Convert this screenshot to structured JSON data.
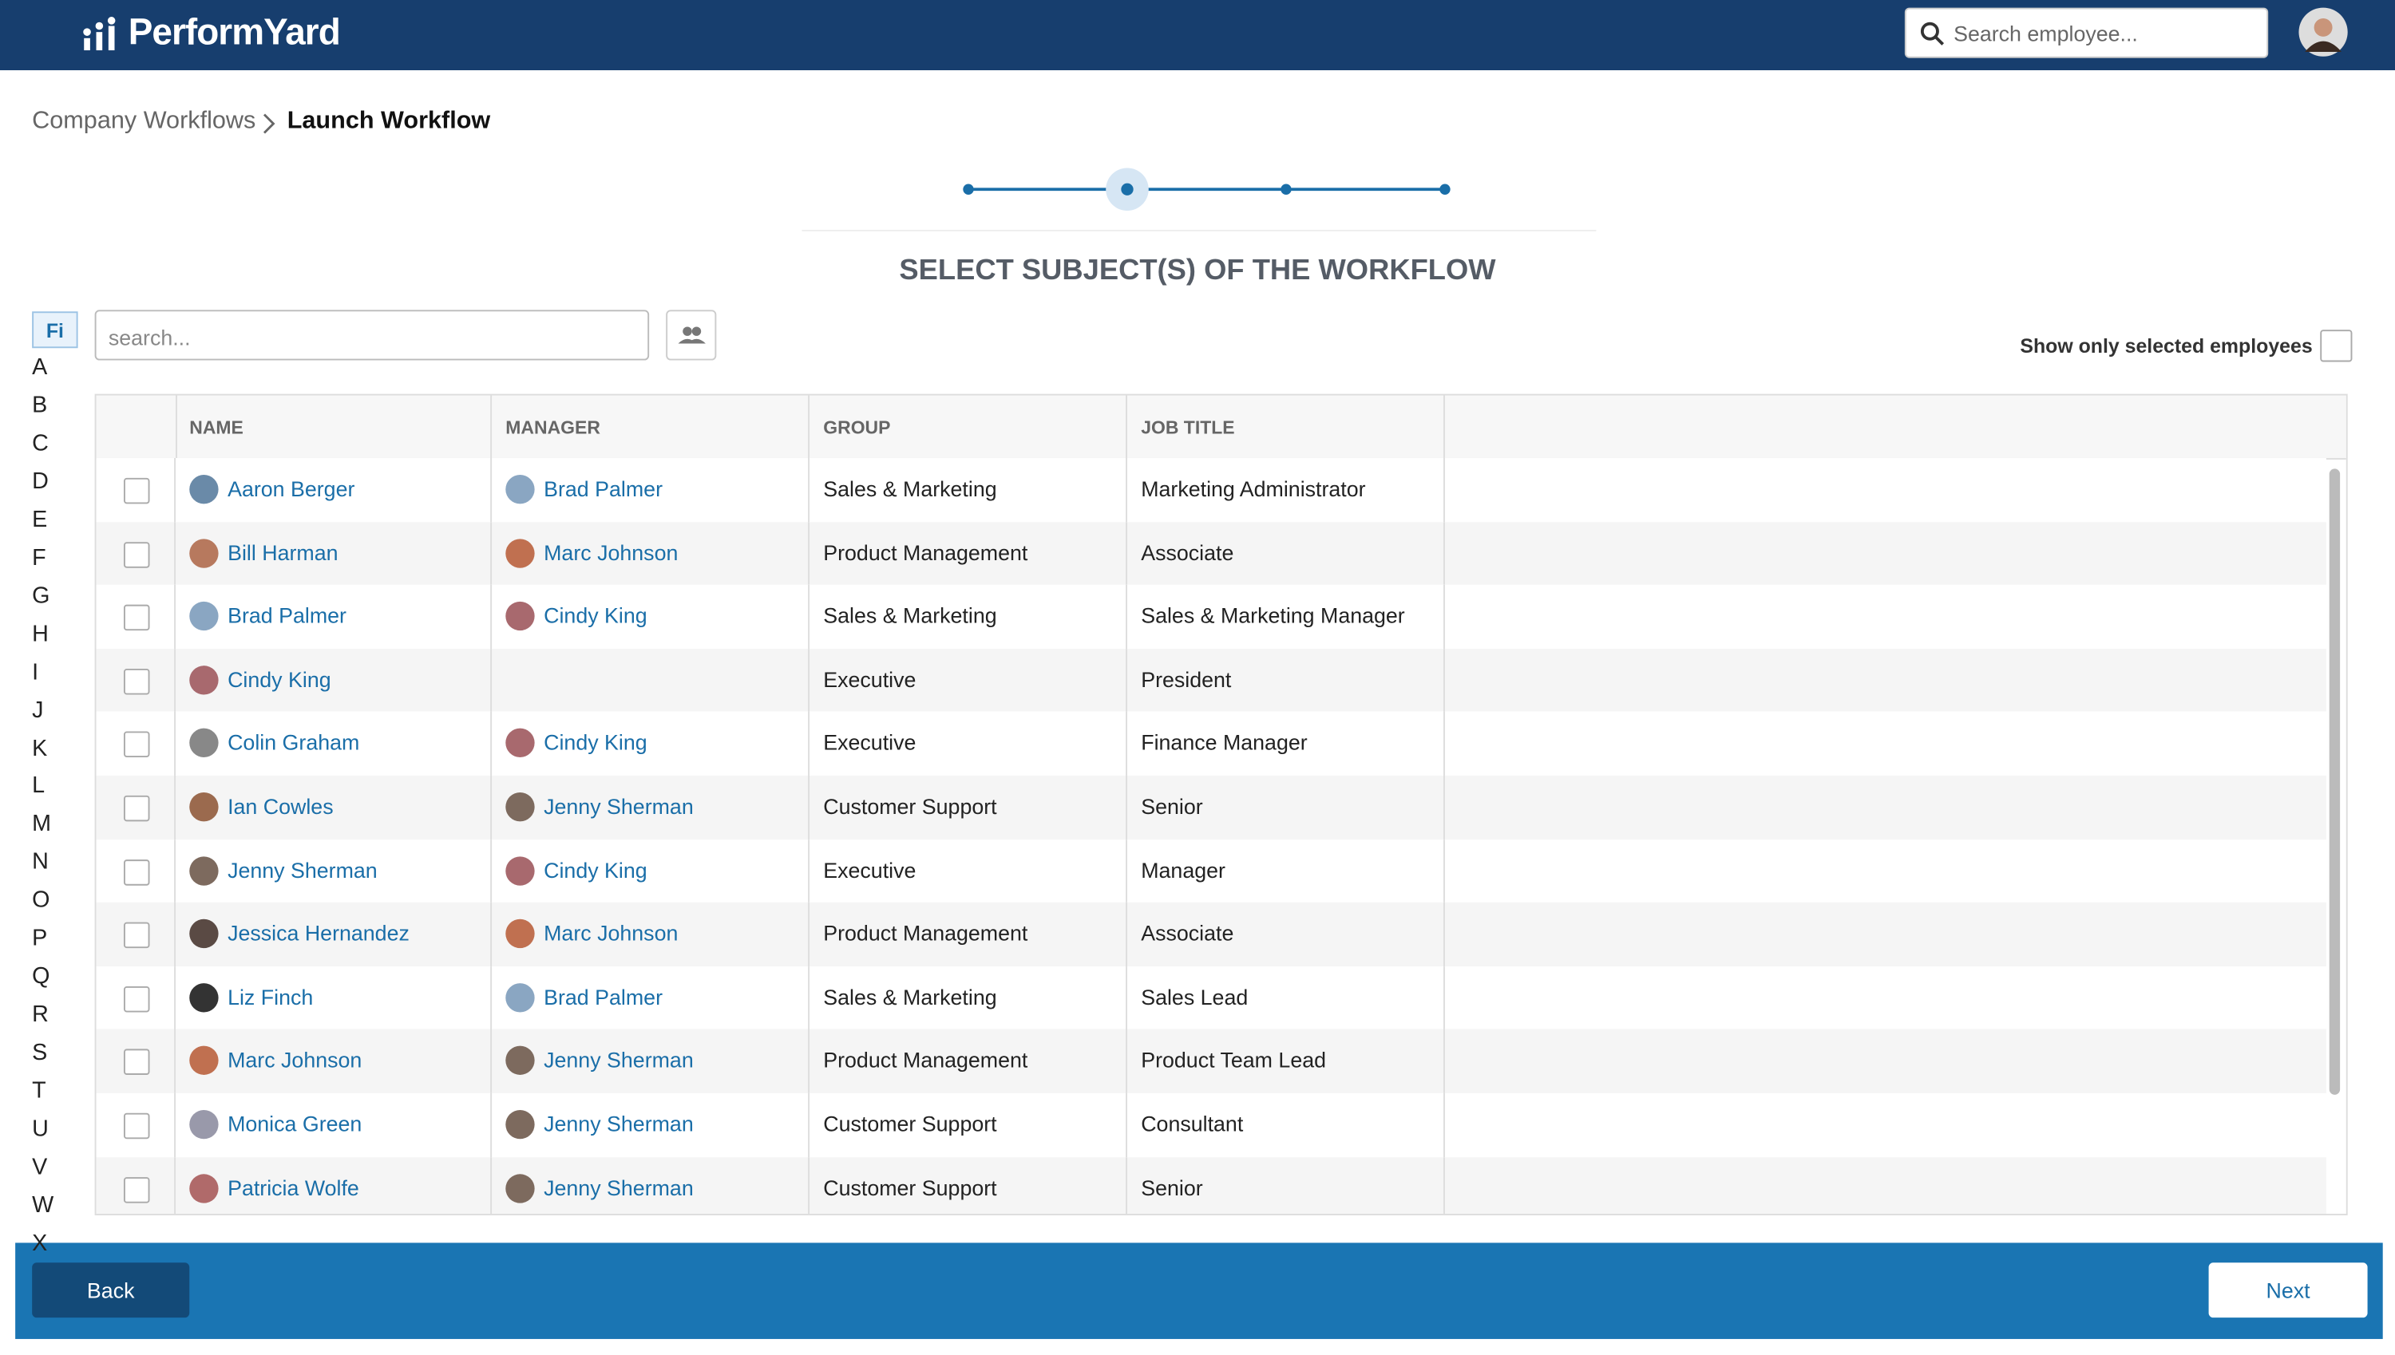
{
  "header": {
    "logo": "PerformYard",
    "search_placeholder": "Search employee..."
  },
  "breadcrumb": [
    "Company Workflows",
    "Launch Workflow"
  ],
  "title": "SELECT SUBJECT(S) OF THE WORKFLOW",
  "filter_tab": "Fi",
  "letters": [
    "A",
    "B",
    "C",
    "D",
    "E",
    "F",
    "G",
    "H",
    "I",
    "J",
    "K",
    "L",
    "M",
    "N",
    "O",
    "P",
    "Q",
    "R",
    "S",
    "T",
    "U",
    "V",
    "W",
    "X"
  ],
  "search_placeholder": "search...",
  "show_selected_label": "Show only selected employees",
  "table": {
    "columns": [
      "NAME",
      "MANAGER",
      "GROUP",
      "JOB TITLE"
    ],
    "rows": [
      [
        "Aaron Berger",
        "Brad Palmer",
        "Sales & Marketing",
        "Marketing Administrator"
      ],
      [
        "Bill Harman",
        "Marc Johnson",
        "Product Management",
        "Associate"
      ],
      [
        "Brad Palmer",
        "Cindy King",
        "Sales & Marketing",
        "Sales & Marketing Manager"
      ],
      [
        "Cindy King",
        null,
        "Executive",
        "President"
      ],
      [
        "Colin Graham",
        "Cindy King",
        "Executive",
        "Finance Manager"
      ],
      [
        "Ian Cowles",
        "Jenny Sherman",
        "Customer Support",
        "Senior"
      ],
      [
        "Jenny Sherman",
        "Cindy King",
        "Executive",
        "Manager"
      ],
      [
        "Jessica Hernandez",
        "Marc Johnson",
        "Product Management",
        "Associate"
      ],
      [
        "Liz Finch",
        "Brad Palmer",
        "Sales & Marketing",
        "Sales Lead"
      ],
      [
        "Marc Johnson",
        "Jenny Sherman",
        "Product Management",
        "Product Team Lead"
      ],
      [
        "Monica Green",
        "Jenny Sherman",
        "Customer Support",
        "Consultant"
      ],
      [
        "Patricia Wolfe",
        "Jenny Sherman",
        "Customer Support",
        "Senior"
      ]
    ]
  },
  "buttons": {
    "back": "Back",
    "next": "Next"
  }
}
